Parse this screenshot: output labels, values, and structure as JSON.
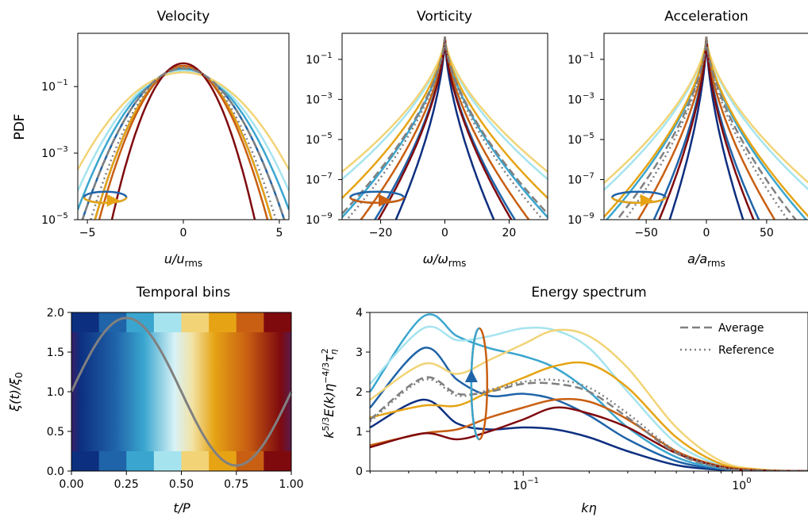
{
  "colors": {
    "sequence": [
      "#0d2f80",
      "#1f63a8",
      "#3aa6cf",
      "#a5e4ef",
      "#f2d477",
      "#e6a415",
      "#c85f12",
      "#7f0a0e"
    ],
    "average": "#808080",
    "reference": "#808080"
  },
  "chart_data": [
    {
      "type": "line",
      "title": "Velocity",
      "xlabel": "u/u_rms",
      "ylabel": "PDF",
      "xlabel_main": "u/u",
      "xlabel_sub": "rms",
      "xlim": [
        -5.5,
        5.5
      ],
      "ylim_log10": [
        -5,
        0.6
      ],
      "yscale": "log",
      "x_ticks": [
        "−5",
        "0",
        "5"
      ],
      "y_ticks": [
        "10",
        "10",
        "10"
      ],
      "y_tick_exponents": [
        "−1",
        "−3",
        "−5"
      ],
      "curve_family": "gaussian",
      "sigmas": [
        1.0,
        1.15,
        1.25,
        1.35,
        1.5,
        1.0,
        0.95,
        0.8
      ],
      "average_sigma": 1.15,
      "reference_sigma": 1.05,
      "arrow_color": "#e6a415"
    },
    {
      "type": "line",
      "title": "Vorticity",
      "xlabel": "ω/ω_rms",
      "xlabel_main": "ω/ω",
      "xlabel_sub": "rms",
      "xlim": [
        -32,
        32
      ],
      "ylim_log10": [
        -9,
        0.3
      ],
      "yscale": "log",
      "x_ticks": [
        "−20",
        "0",
        "20"
      ],
      "y_ticks": [
        "10",
        "10",
        "10",
        "10",
        "10"
      ],
      "y_tick_exponents": [
        "−1",
        "−3",
        "−5",
        "−7",
        "−9"
      ],
      "curve_family": "stretched",
      "widths": [
        0.7,
        1.0,
        1.5,
        2.2,
        2.4,
        1.8,
        1.2,
        0.95
      ],
      "average_width": 1.55,
      "reference_width": 1.4,
      "arrow_color": "#c85f12"
    },
    {
      "type": "line",
      "title": "Acceleration",
      "xlabel": "a/a_rms",
      "xlabel_main": "a/a",
      "xlabel_sub": "rms",
      "xlim": [
        -85,
        85
      ],
      "ylim_log10": [
        -9,
        0.3
      ],
      "yscale": "log",
      "x_ticks": [
        "−50",
        "0",
        "50"
      ],
      "y_ticks": [
        "10",
        "10",
        "10",
        "10",
        "10"
      ],
      "y_tick_exponents": [
        "−1",
        "−3",
        "−5",
        "−7",
        "−9"
      ],
      "curve_family": "stretched",
      "widths": [
        1.4,
        2.0,
        3.8,
        5.2,
        5.6,
        4.0,
        2.6,
        1.8
      ],
      "average_width": 3.4,
      "reference_width": 3.1,
      "arrow_color": "#e6a415"
    },
    {
      "type": "heatmap",
      "title": "Temporal bins",
      "xlabel": "t/P",
      "ylabel": "ξ(t)/ξ0",
      "ylabel_main": "ξ(t)/ξ",
      "ylabel_sub": "0",
      "xlim": [
        0,
        1
      ],
      "ylim": [
        0,
        2
      ],
      "x_ticks": [
        "0.00",
        "0.25",
        "0.50",
        "0.75",
        "1.00"
      ],
      "y_ticks": [
        "0.0",
        "0.5",
        "1.0",
        "1.5",
        "2.0"
      ],
      "bins": 8,
      "signal": "1 + sin(2πt/P)",
      "signal_color": "#808080"
    },
    {
      "type": "line",
      "title": "Energy spectrum",
      "xlabel": "kη",
      "ylabel": "k^{5/3} E(k) η^{−4/3} τ_η^2",
      "xscale": "log",
      "xlim_log10": [
        -1.7,
        0.3
      ],
      "ylim": [
        0,
        4
      ],
      "x_ticks": [
        "10",
        "10"
      ],
      "x_tick_exponents": [
        "−1",
        "0"
      ],
      "y_ticks": [
        "0",
        "1",
        "2",
        "3",
        "4"
      ],
      "legend": [
        "Average",
        "Reference"
      ],
      "legend_position": "top-right",
      "series": [
        {
          "k": [
            0.02,
            0.035,
            0.05,
            0.07,
            0.1,
            0.14,
            0.2,
            0.3,
            0.5,
            0.8,
            1.2,
            2.0
          ],
          "E": [
            1.1,
            1.8,
            1.2,
            1.05,
            1.1,
            1.05,
            0.85,
            0.5,
            0.15,
            0.03,
            0.005,
            0.0
          ]
        },
        {
          "k": [
            0.02,
            0.035,
            0.05,
            0.07,
            0.1,
            0.14,
            0.2,
            0.3,
            0.5,
            0.8,
            1.2,
            2.0
          ],
          "E": [
            1.6,
            3.1,
            2.3,
            1.9,
            1.95,
            1.8,
            1.4,
            0.8,
            0.25,
            0.05,
            0.008,
            0.0
          ]
        },
        {
          "k": [
            0.02,
            0.035,
            0.05,
            0.07,
            0.1,
            0.14,
            0.2,
            0.3,
            0.5,
            0.8,
            1.2,
            2.0
          ],
          "E": [
            2.0,
            3.9,
            3.4,
            3.1,
            2.9,
            2.6,
            2.0,
            1.1,
            0.35,
            0.07,
            0.01,
            0.0
          ]
        },
        {
          "k": [
            0.02,
            0.035,
            0.05,
            0.07,
            0.1,
            0.14,
            0.2,
            0.3,
            0.5,
            0.8,
            1.2,
            2.0
          ],
          "E": [
            2.2,
            3.6,
            3.3,
            3.4,
            3.6,
            3.55,
            3.1,
            2.0,
            0.7,
            0.15,
            0.02,
            0.0
          ]
        },
        {
          "k": [
            0.02,
            0.035,
            0.05,
            0.07,
            0.1,
            0.14,
            0.2,
            0.3,
            0.5,
            0.8,
            1.2,
            2.0
          ],
          "E": [
            1.8,
            2.7,
            2.45,
            2.8,
            3.2,
            3.55,
            3.4,
            2.6,
            1.1,
            0.25,
            0.04,
            0.0
          ]
        },
        {
          "k": [
            0.02,
            0.035,
            0.05,
            0.07,
            0.1,
            0.14,
            0.2,
            0.3,
            0.5,
            0.8,
            1.2,
            2.0
          ],
          "E": [
            1.35,
            1.65,
            1.65,
            2.0,
            2.35,
            2.65,
            2.7,
            2.1,
            0.85,
            0.18,
            0.03,
            0.0
          ]
        },
        {
          "k": [
            0.02,
            0.035,
            0.05,
            0.07,
            0.1,
            0.14,
            0.2,
            0.3,
            0.5,
            0.8,
            1.2,
            2.0
          ],
          "E": [
            0.65,
            0.95,
            1.05,
            1.35,
            1.6,
            1.8,
            1.75,
            1.3,
            0.5,
            0.12,
            0.02,
            0.0
          ]
        },
        {
          "k": [
            0.02,
            0.035,
            0.05,
            0.07,
            0.1,
            0.14,
            0.2,
            0.3,
            0.5,
            0.8,
            1.2,
            2.0
          ],
          "E": [
            0.6,
            0.95,
            0.8,
            1.0,
            1.3,
            1.6,
            1.45,
            1.1,
            0.45,
            0.1,
            0.015,
            0.0
          ]
        }
      ],
      "average": {
        "k": [
          0.02,
          0.035,
          0.05,
          0.07,
          0.1,
          0.14,
          0.2,
          0.3,
          0.5,
          0.8,
          1.2,
          2.0
        ],
        "E": [
          1.3,
          2.35,
          1.95,
          2.0,
          2.2,
          2.2,
          2.0,
          1.35,
          0.45,
          0.08,
          0.01,
          0.0
        ]
      },
      "reference": {
        "k": [
          0.02,
          0.035,
          0.05,
          0.07,
          0.1,
          0.14,
          0.2,
          0.3,
          0.5,
          0.8,
          1.2,
          2.0
        ],
        "E": [
          1.25,
          2.3,
          1.9,
          2.05,
          2.25,
          2.3,
          2.1,
          1.45,
          0.5,
          0.1,
          0.015,
          0.0
        ]
      },
      "arrow_color": "#1f63a8"
    }
  ]
}
